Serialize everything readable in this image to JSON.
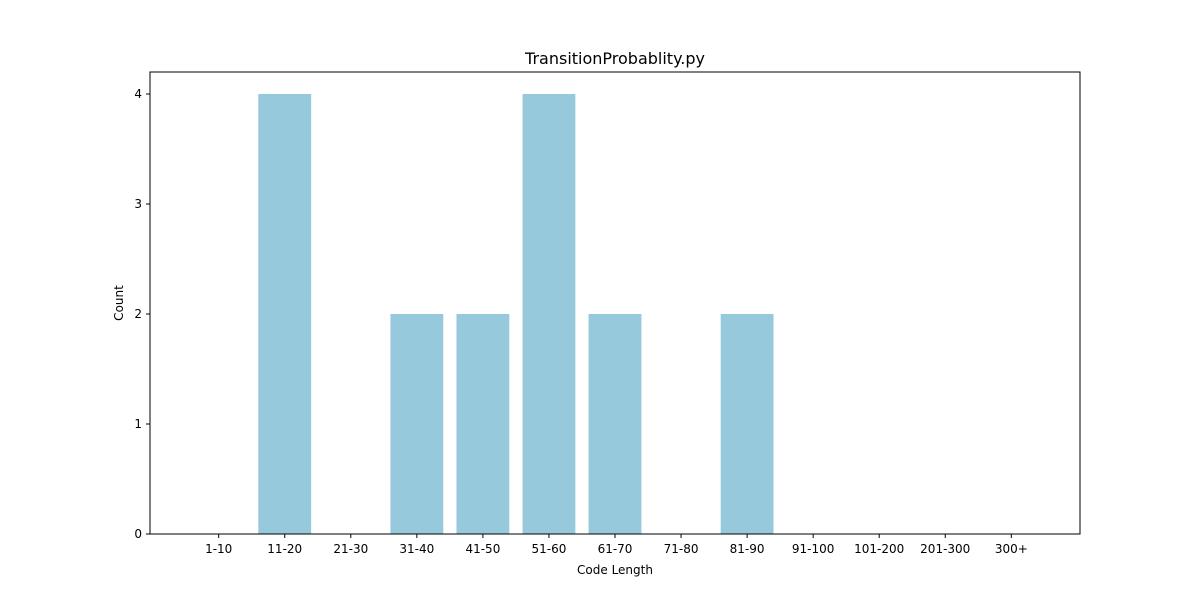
{
  "chart_data": {
    "type": "bar",
    "title": "TransitionProbablity.py",
    "xlabel": "Code Length",
    "ylabel": "Count",
    "categories": [
      "1-10",
      "11-20",
      "21-30",
      "31-40",
      "41-50",
      "51-60",
      "61-70",
      "71-80",
      "81-90",
      "91-100",
      "101-200",
      "201-300",
      "300+"
    ],
    "values": [
      0,
      4,
      0,
      2,
      2,
      4,
      2,
      0,
      2,
      0,
      0,
      0,
      0
    ],
    "ylim": [
      0,
      4.2
    ],
    "yticks": [
      0,
      1,
      2,
      3,
      4
    ],
    "grid": false,
    "legend": "none",
    "bar_color": "#96c9dc"
  }
}
